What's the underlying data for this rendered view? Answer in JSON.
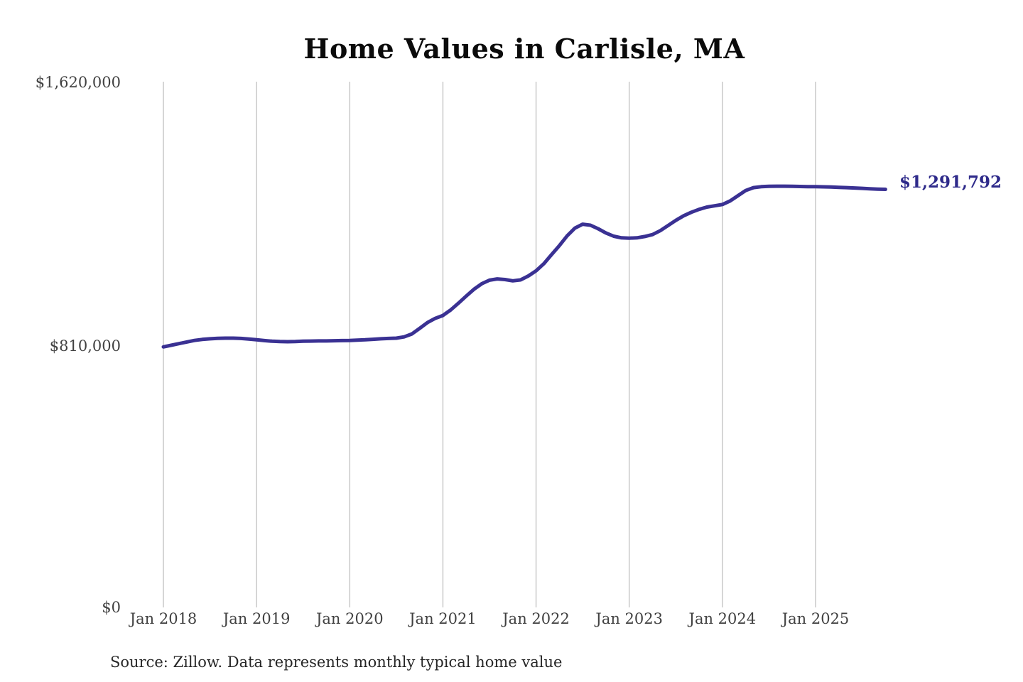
{
  "title": "Home Values in Carlisle, MA",
  "source_note": "Source: Zillow. Data represents monthly typical home value",
  "end_label": "$1,291,792",
  "colors": {
    "line": "#3a3193",
    "end_label_text": "#2e2a8a",
    "gridline": "#c9c9c9",
    "axis_text": "#414141",
    "title_text": "#0b0b0b",
    "source_text": "#262626",
    "background": "#ffffff"
  },
  "y_axis": {
    "ticks": [
      {
        "label": "$1,620,000",
        "value": 1620000
      },
      {
        "label": "$810,000",
        "value": 810000
      },
      {
        "label": "$0",
        "value": 0
      }
    ]
  },
  "x_axis": {
    "ticks": [
      "Jan 2018",
      "Jan 2019",
      "Jan 2020",
      "Jan 2021",
      "Jan 2022",
      "Jan 2023",
      "Jan 2024",
      "Jan 2025"
    ]
  },
  "chart_data": {
    "type": "line",
    "title": "Home Values in Carlisle, MA",
    "xlabel": "",
    "ylabel": "",
    "ylim": [
      0,
      1620000
    ],
    "y_tick_values": [
      0,
      810000,
      1620000
    ],
    "x_tick_labels": [
      "Jan 2018",
      "Jan 2019",
      "Jan 2020",
      "Jan 2021",
      "Jan 2022",
      "Jan 2023",
      "Jan 2024",
      "Jan 2025"
    ],
    "frequency": "monthly",
    "start_month": "2018-01",
    "end_month": "2025-10",
    "grid": "vertical-only",
    "legend_position": "none",
    "final_value": 1291792,
    "final_value_label": "$1,291,792",
    "series": [
      {
        "name": "Typical home value",
        "values": [
          805000,
          810000,
          815000,
          820000,
          825000,
          828000,
          830000,
          831500,
          832000,
          832000,
          831000,
          829000,
          827000,
          824500,
          822500,
          821500,
          821000,
          821500,
          822500,
          823000,
          823500,
          823500,
          824000,
          824500,
          825000,
          826000,
          827000,
          828500,
          830000,
          831000,
          832000,
          836000,
          845000,
          862000,
          880000,
          893000,
          902000,
          919000,
          940000,
          962000,
          983000,
          1000000,
          1011000,
          1015000,
          1013000,
          1009000,
          1012000,
          1024000,
          1040000,
          1062000,
          1090000,
          1118000,
          1148000,
          1172000,
          1184000,
          1181000,
          1170000,
          1157000,
          1147000,
          1142000,
          1141000,
          1142000,
          1146000,
          1152000,
          1164000,
          1180000,
          1196000,
          1210000,
          1221000,
          1230000,
          1237000,
          1241000,
          1245000,
          1256000,
          1272000,
          1288000,
          1297000,
          1300000,
          1301000,
          1301500,
          1301500,
          1301000,
          1300500,
          1300000,
          1300000,
          1299500,
          1299000,
          1298000,
          1297000,
          1296000,
          1295000,
          1293500,
          1292500,
          1291792
        ]
      }
    ]
  }
}
